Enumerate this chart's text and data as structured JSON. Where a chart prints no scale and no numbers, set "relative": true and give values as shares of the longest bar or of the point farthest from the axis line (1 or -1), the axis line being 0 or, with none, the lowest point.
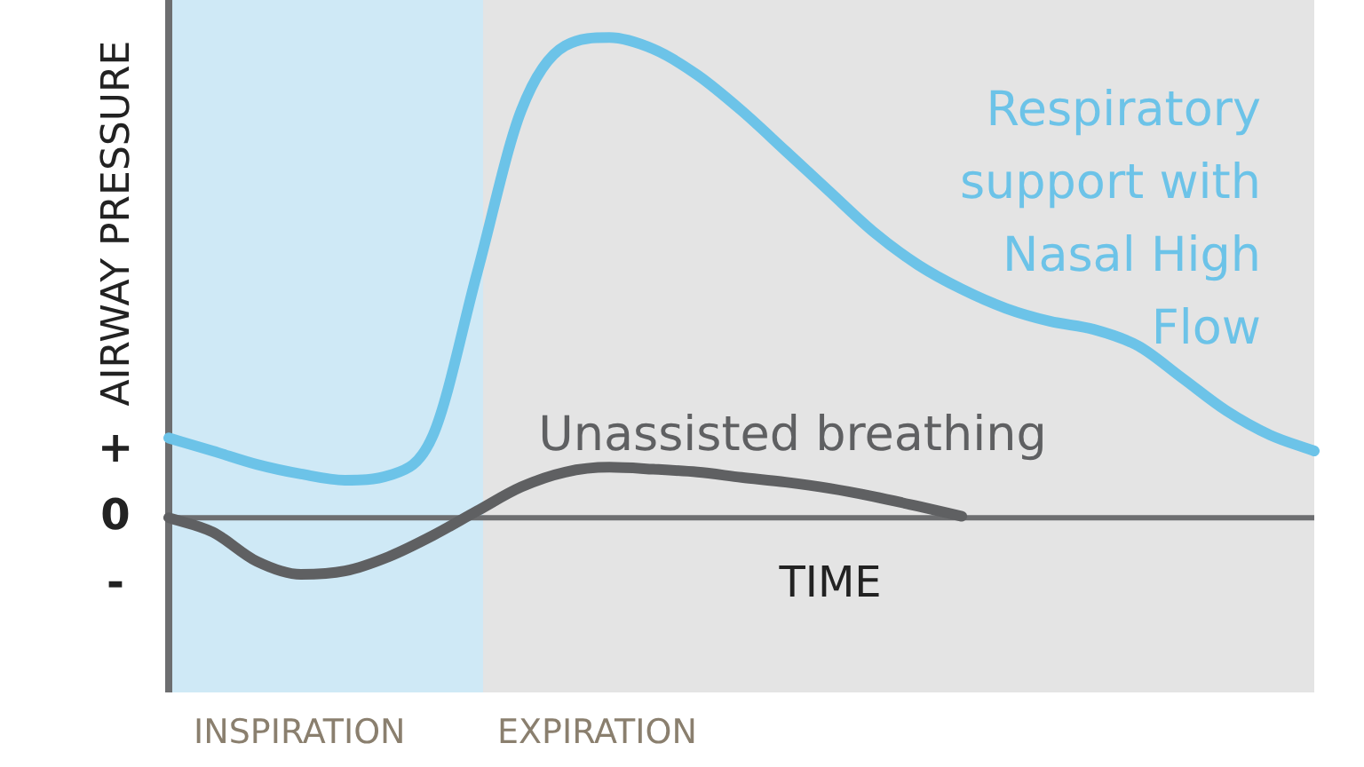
{
  "chart_data": {
    "type": "line",
    "relative": true,
    "ylabel": "AIRWAY PRESSURE",
    "xlabel": "TIME",
    "categories": [
      null,
      null,
      null,
      null,
      null,
      null,
      null,
      null,
      null,
      null,
      null,
      null,
      null,
      null,
      null,
      null,
      null,
      null,
      null,
      null,
      null,
      null,
      null,
      null,
      null,
      null,
      null
    ],
    "series": [
      {
        "name": "Respiratory support with Nasal High Flow",
        "color": "#6cc3e8",
        "values": [
          0.166,
          0.139,
          0.111,
          0.091,
          0.078,
          0.088,
          0.172,
          0.51,
          0.848,
          0.983,
          1,
          0.976,
          0.922,
          0.848,
          0.764,
          0.679,
          0.595,
          0.527,
          0.476,
          0.436,
          0.409,
          0.392,
          0.358,
          0.291,
          0.223,
          0.172,
          0.139
        ]
      },
      {
        "name": "Unassisted breathing",
        "color": "#5f6062",
        "values": [
          0,
          -0.03,
          -0.091,
          -0.118,
          -0.111,
          -0.081,
          -0.037,
          0.014,
          0.064,
          0.095,
          0.105,
          0.101,
          0.095,
          0.084,
          0.074,
          0.061,
          0.044,
          0.024,
          0.003,
          null,
          null,
          null,
          null,
          null,
          null,
          null,
          null
        ]
      }
    ],
    "annotations": [
      "+",
      "0",
      "-",
      "INSPIRATION",
      "EXPIRATION"
    ],
    "grid": false,
    "legend": false,
    "marker": "none",
    "line_style": "solid"
  }
}
